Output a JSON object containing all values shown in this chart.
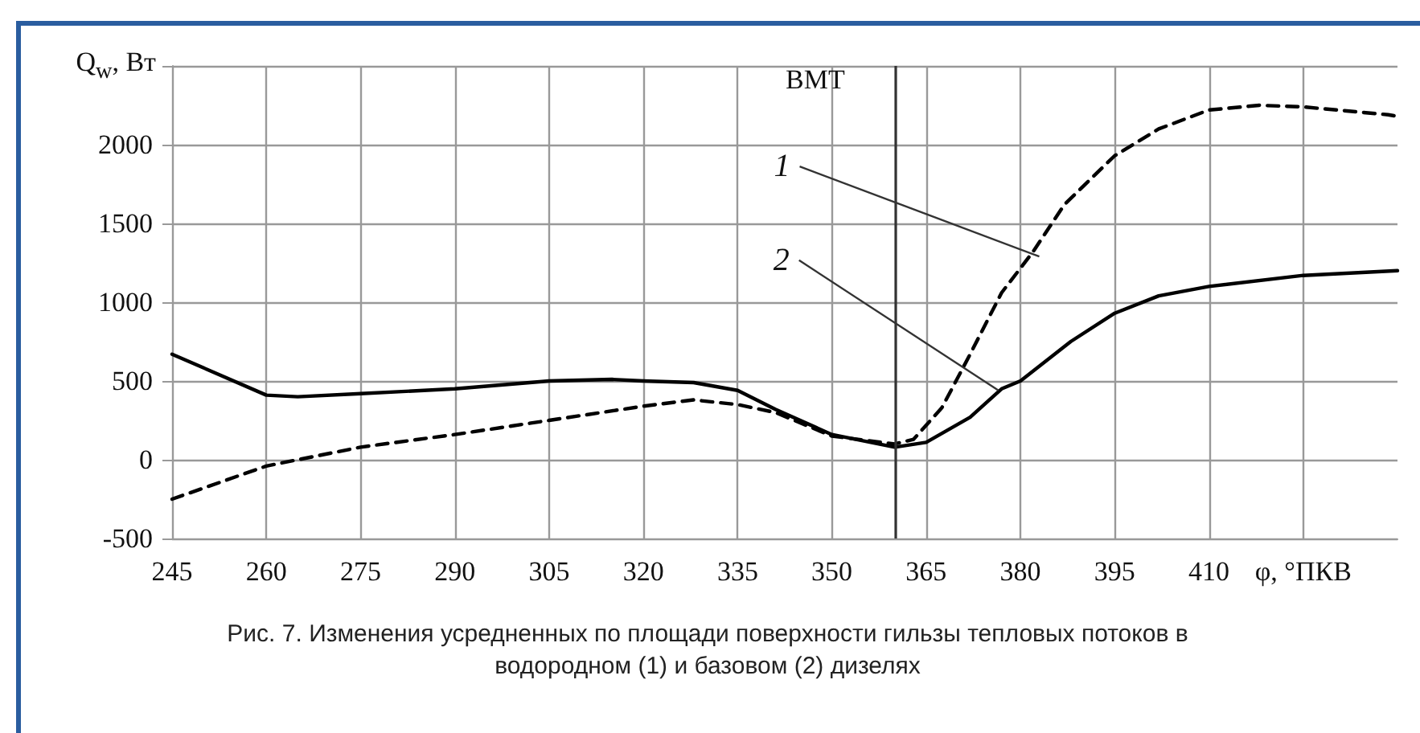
{
  "chart_data": {
    "type": "line",
    "ylabel": "Q$_{w}$, Вт",
    "xlabel": "φ, °ПКВ",
    "xlim": [
      245,
      440
    ],
    "xticks": [
      245,
      260,
      275,
      290,
      305,
      320,
      335,
      350,
      365,
      380,
      395,
      410,
      {
        "value": 425,
        "label": null
      }
    ],
    "ylim": [
      -500,
      2500
    ],
    "yticks": [
      -500,
      0,
      500,
      1000,
      1500,
      2000,
      {
        "value": 2500,
        "label": null
      }
    ],
    "grid": true,
    "marker": "none",
    "series": [
      {
        "color": "#000000",
        "line_style": "dashed",
        "x": [
          245,
          260,
          275,
          290,
          305,
          320,
          328,
          335,
          341,
          350,
          360,
          363,
          367.5,
          372,
          377,
          382,
          387,
          395,
          402,
          410,
          418,
          425,
          438.5,
          440
        ],
        "values": [
          -250,
          -40,
          80,
          160,
          250,
          340,
          380,
          350,
          300,
          150,
          100,
          130,
          330,
          670,
          1060,
          1320,
          1620,
          1930,
          2100,
          2220,
          2250,
          2240,
          2190,
          2180
        ]
      },
      {
        "color": "#000000",
        "line_style": "solid",
        "x": [
          245,
          260,
          265,
          275,
          290,
          305,
          315,
          320,
          328,
          335,
          341,
          350,
          360,
          365,
          372,
          377,
          380,
          388,
          395,
          402,
          410,
          425,
          440
        ],
        "values": [
          670,
          410,
          400,
          420,
          450,
          500,
          510,
          500,
          490,
          440,
          320,
          160,
          80,
          110,
          270,
          450,
          500,
          750,
          930,
          1040,
          1100,
          1170,
          1200
        ]
      }
    ],
    "ref_lines": [
      {
        "axis": "x",
        "value": 360,
        "label": "ВМТ",
        "color": "#333333"
      }
    ],
    "annotations": [
      {
        "text": "1",
        "x": 383,
        "y": 1290
      },
      {
        "text": "2",
        "x": 376.5,
        "y": 440
      },
      "Рис. 7. Изменения усредненных по площади поверхности гильзы тепловых потоков в водородном (1) и базовом (2) дизелях"
    ]
  }
}
